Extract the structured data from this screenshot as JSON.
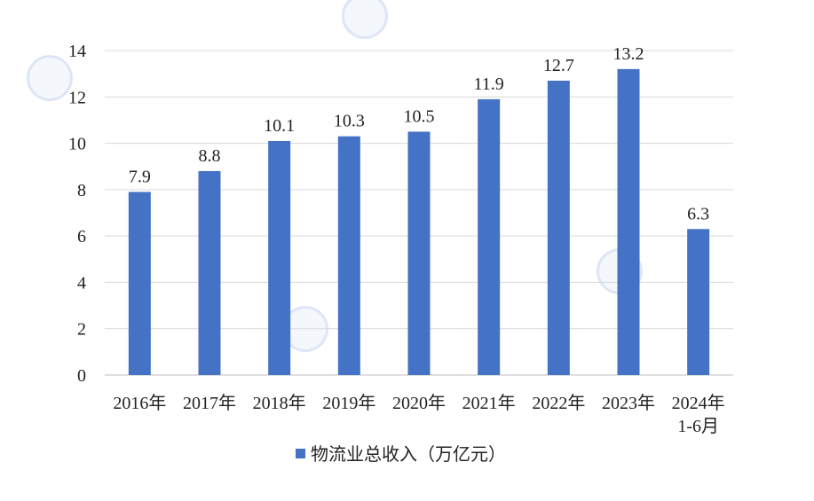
{
  "chart_data": {
    "type": "bar",
    "categories": [
      "2016年",
      "2017年",
      "2018年",
      "2019年",
      "2020年",
      "2021年",
      "2022年",
      "2023年",
      "2024年\n1-6月"
    ],
    "series": [
      {
        "name": "物流业总收入（万亿元）",
        "values": [
          7.9,
          8.8,
          10.1,
          10.3,
          10.5,
          11.9,
          12.7,
          13.2,
          6.3
        ],
        "color": "#4472C4"
      }
    ],
    "ylim": [
      0,
      14
    ],
    "yticks": [
      0,
      2,
      4,
      6,
      8,
      10,
      12,
      14
    ],
    "grid": true,
    "legend_position": "bottom"
  }
}
